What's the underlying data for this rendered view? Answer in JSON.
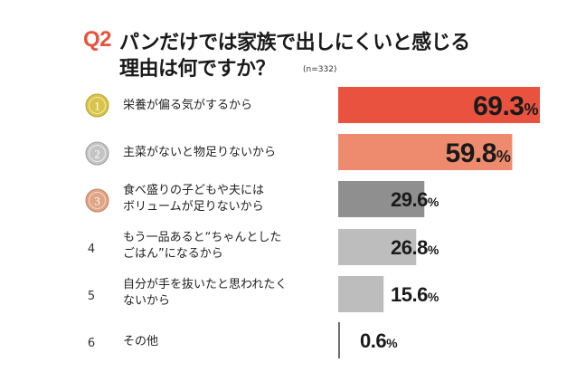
{
  "header": {
    "question_number": "Q2",
    "title_line1": "パンだけでは家族で出しにくいと感じる",
    "title_line2": "理由は何ですか？",
    "sample_size": "(n=332)"
  },
  "colors": {
    "rank1": "#e8523f",
    "rank2": "#ee8b6f",
    "rank3": "#8f8f8f",
    "rank_other": "#bdbdbd",
    "accent": "#e8523f",
    "medal_gold": "#d8c44a",
    "medal_silver": "#c4c4c4",
    "medal_bronze": "#e0a587"
  },
  "chart_data": {
    "type": "bar",
    "orientation": "horizontal",
    "title": "パンだけでは家族で出しにくいと感じる理由は何ですか？",
    "unit": "%",
    "xlim": [
      0,
      70
    ],
    "grid": false,
    "categories": [
      "栄養が偏る気がするから",
      "主菜がないと物足りないから",
      "食べ盛りの子どもや夫にはボリュームが足りないから",
      "もう一品あると“ちゃんとしたごはん”になるから",
      "自分が手を抜いたと思われたくないから",
      "その他"
    ],
    "values": [
      69.3,
      59.8,
      29.6,
      26.8,
      15.6,
      0.6
    ],
    "value_labels": [
      "69.3",
      "59.8",
      "29.6",
      "26.8",
      "15.6",
      "0.6"
    ]
  },
  "rows": [
    {
      "rank": "1",
      "label_lines": [
        "栄養が偏る気がするから"
      ]
    },
    {
      "rank": "2",
      "label_lines": [
        "主菜がないと物足りないから"
      ]
    },
    {
      "rank": "3",
      "label_lines": [
        "食べ盛りの子どもや夫には",
        "ボリュームが足りないから"
      ]
    },
    {
      "rank": "4",
      "label_lines": [
        "もう一品あると“ちゃんとした",
        "ごはん”になるから"
      ]
    },
    {
      "rank": "5",
      "label_lines": [
        "自分が手を抜いたと思われたく",
        "ないから"
      ]
    },
    {
      "rank": "6",
      "label_lines": [
        "その他"
      ]
    }
  ]
}
